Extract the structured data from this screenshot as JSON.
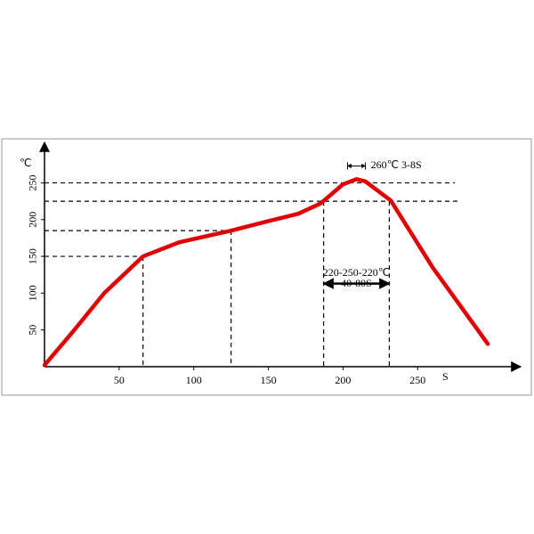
{
  "chart_data": {
    "type": "line",
    "y_label": "℃",
    "x_label": "S",
    "x": [
      0,
      20,
      40,
      66,
      90,
      125,
      150,
      170,
      185,
      200,
      209,
      215,
      232,
      260,
      297
    ],
    "series": [
      {
        "color": "#e00000",
        "values": [
          2,
          50,
          100,
          150,
          169,
          185,
          198,
          208,
          222,
          248,
          255,
          252,
          226,
          135,
          31
        ]
      }
    ],
    "xlim": [
      0,
      319
    ],
    "ylim": [
      0,
      305
    ],
    "xticks": [
      50,
      100,
      150,
      200,
      250
    ],
    "yticks": [
      50,
      100,
      150,
      200,
      250
    ],
    "hlines": [
      {
        "y": 150,
        "x": 66
      },
      {
        "y": 185,
        "x": 125
      },
      {
        "y": 225,
        "x": 277
      },
      {
        "y": 250,
        "x": 275
      }
    ],
    "vlines": [
      {
        "x": 66,
        "y": 150
      },
      {
        "x": 125,
        "y": 185
      },
      {
        "x": 187,
        "y": 225
      },
      {
        "x": 231,
        "y": 225
      }
    ],
    "annotations": [
      {
        "text": "260℃ 3-8S",
        "x_from": 203,
        "x_to": 215,
        "y": 273
      },
      {
        "text": "220-250-220℃",
        "x_from": 187,
        "x_to": 231,
        "y": 125
      },
      {
        "text": "40-80S",
        "x_from": 187,
        "x_to": 231,
        "y": 113
      }
    ]
  }
}
